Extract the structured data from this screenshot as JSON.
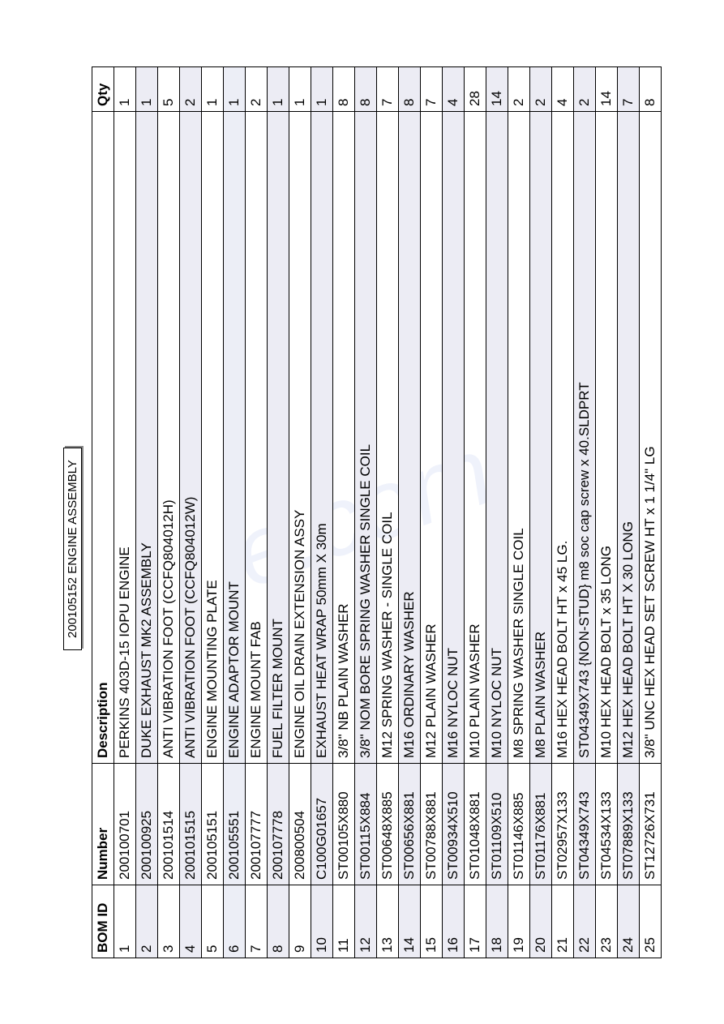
{
  "title": "200105152 ENGINE ASSEMBLY",
  "columns": [
    "BOM ID",
    "Number",
    "Description",
    "Qty"
  ],
  "rows": [
    [
      "1",
      "200100701",
      "PERKINS 403D-15 IOPU ENGINE",
      "1"
    ],
    [
      "2",
      "200100925",
      "DUKE EXHAUST MK2 ASSEMBLY",
      "1"
    ],
    [
      "3",
      "200101514",
      "ANTI VIBRATION FOOT (CCFQ804012H)",
      "5"
    ],
    [
      "4",
      "200101515",
      "ANTI VIBRATION FOOT (CCFQ804012W)",
      "2"
    ],
    [
      "5",
      "200105151",
      "ENGINE MOUNTING PLATE",
      "1"
    ],
    [
      "6",
      "200105551",
      "ENGINE ADAPTOR MOUNT",
      "1"
    ],
    [
      "7",
      "200107777",
      "ENGINE MOUNT FAB",
      "2"
    ],
    [
      "8",
      "200107778",
      "FUEL FILTER MOUNT",
      "1"
    ],
    [
      "9",
      "200800504",
      "ENGINE OIL DRAIN EXTENSION ASSY",
      "1"
    ],
    [
      "10",
      "C100G01657",
      "EXHAUST HEAT WRAP 50mm X 30m",
      "1"
    ],
    [
      "11",
      "ST00105X880",
      "3/8\" NB PLAIN WASHER",
      "8"
    ],
    [
      "12",
      "ST00115X884",
      "3/8\" NOM BORE SPRING WASHER SINGLE COIL",
      "8"
    ],
    [
      "13",
      "ST00648X885",
      "M12 SPRING WASHER - SINGLE COIL",
      "7"
    ],
    [
      "14",
      "ST00656X881",
      "M16 ORDINARY WASHER",
      "8"
    ],
    [
      "15",
      "ST00788X881",
      "M12 PLAIN WASHER",
      "7"
    ],
    [
      "16",
      "ST00934X510",
      "M16 NYLOC NUT",
      "4"
    ],
    [
      "17",
      "ST01048X881",
      "M10 PLAIN WASHER",
      "28"
    ],
    [
      "18",
      "ST01109X510",
      "M10 NYLOC NUT",
      "14"
    ],
    [
      "19",
      "ST01146X885",
      "M8 SPRING WASHER SINGLE COIL",
      "2"
    ],
    [
      "20",
      "ST01176X881",
      "M8 PLAIN WASHER",
      "2"
    ],
    [
      "21",
      "ST02957X133",
      "M16 HEX HEAD BOLT HT x 45 LG.",
      "4"
    ],
    [
      "22",
      "ST04349X743",
      "ST04349X743 {NON-STUD} m8 soc cap screw x 40.SLDPRT",
      "2"
    ],
    [
      "23",
      "ST04534X133",
      "M10 HEX HEAD BOLT x 35 LONG",
      "14"
    ],
    [
      "24",
      "ST07889X133",
      "M12 HEX HEAD BOLT HT X 30 LONG",
      "7"
    ],
    [
      "25",
      "ST12726X731",
      "3/8\" UNC HEX HEAD SET SCREW HT x 1 1/4\" LG",
      "8"
    ]
  ],
  "highlight_row_index": 5,
  "highlight_color": "#eceef6",
  "watermark": "e.com"
}
